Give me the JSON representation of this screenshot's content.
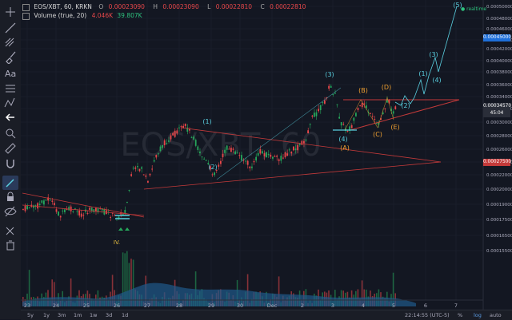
{
  "header": {
    "symbol": "EOS/XBT, 60, KRKN",
    "ohlc": [
      {
        "label": "O",
        "value": "0.00023090"
      },
      {
        "label": "H",
        "value": "0.00023090"
      },
      {
        "label": "L",
        "value": "0.00022810"
      },
      {
        "label": "C",
        "value": "0.00022810"
      }
    ],
    "volume_label": "Volume (true, 20)",
    "volume_value1": "4.046K",
    "volume_value2": "39.807K",
    "realtime": "realtime"
  },
  "price_axis": {
    "ticks": [
      "0.00050000",
      "0.00048000",
      "0.00046000",
      "0.00044000",
      "0.00042000",
      "0.00040000",
      "0.00038000",
      "0.00036000",
      "0.00034000",
      "0.00032000",
      "0.00030000",
      "0.00028000",
      "0.00026000",
      "0.00024000",
      "0.00022000",
      "0.00020000",
      "0.00019000",
      "0.00017500",
      "0.00016500",
      "0.00015500"
    ],
    "labels": {
      "blue_level": "0.00045000",
      "current": "0.00034570",
      "countdown": "45:04",
      "red_level": "0.00027500"
    }
  },
  "time_axis": [
    "23",
    "24",
    "25",
    "26",
    "27",
    "28",
    "29",
    "30",
    "Dec",
    "2",
    "3",
    "4",
    "5",
    "6",
    "7"
  ],
  "wave_labels": {
    "w1": "(1)",
    "w2": "(2)",
    "w3": "(3)",
    "w4": "(4)",
    "a": "(A)",
    "b": "(B)",
    "c": "(C)",
    "d": "(D)",
    "e": "(E)",
    "p1": "(1)",
    "p2": "(2)",
    "p3": "(3)",
    "p4": "(4)",
    "p5": "(5)",
    "iv": "IV."
  },
  "watermark": "EOS/XBT, 60",
  "bottom_bar": {
    "ranges": [
      "5y",
      "1y",
      "3m",
      "1m",
      "1w",
      "3d",
      "1d"
    ],
    "clock": "22:14:55 (UTC-5)",
    "percent": "%",
    "log": "log",
    "auto": "auto"
  },
  "colors": {
    "background": "#131722",
    "up_candle": "#26a65b",
    "down_candle": "#e8474a",
    "wave_cyan": "#5ad0e0",
    "wave_orange": "#f0a030",
    "trend_red": "#c43a3a",
    "price_blue": "#1e6fd9"
  }
}
